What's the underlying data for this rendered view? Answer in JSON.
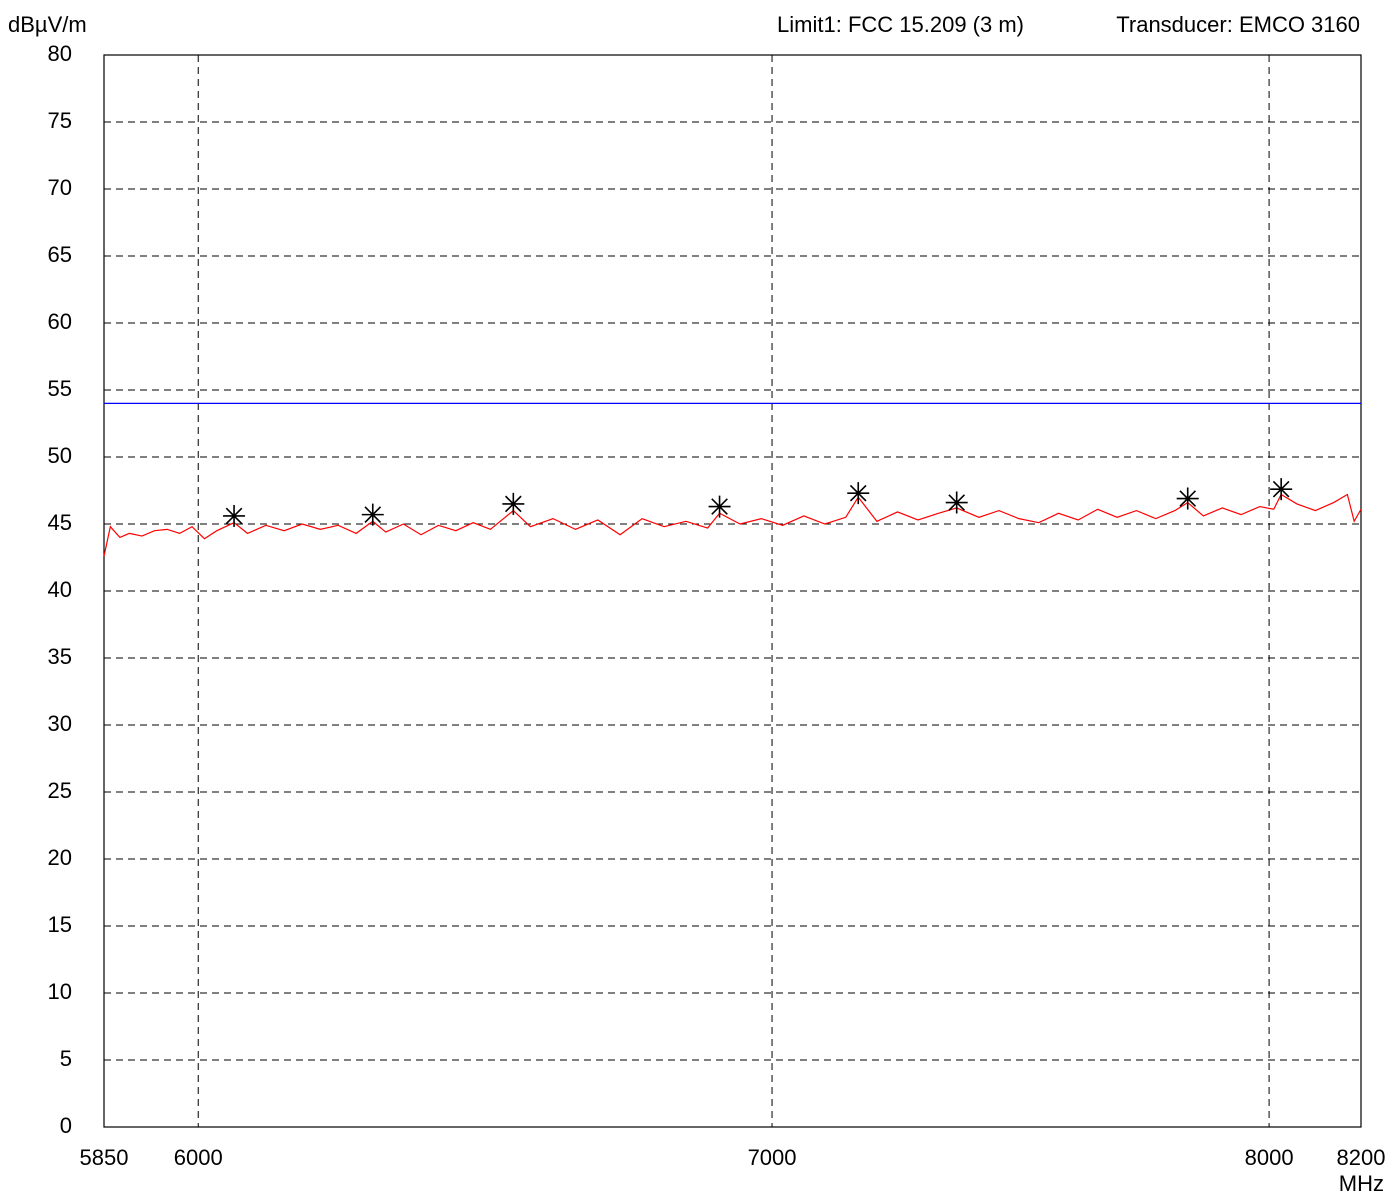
{
  "chart_data": {
    "type": "line",
    "y_label": "dBµV/m",
    "x_label": "MHz",
    "annotations": [
      "Limit1: FCC 15.209 (3 m)",
      "Transducer: EMCO 3160"
    ],
    "xlim": [
      5850,
      8200
    ],
    "xticks": [
      5850,
      6000,
      7000,
      8000,
      8200
    ],
    "xscale": "log",
    "ylim": [
      0,
      80
    ],
    "yticks": [
      0,
      5,
      10,
      15,
      20,
      25,
      30,
      35,
      40,
      45,
      50,
      55,
      60,
      65,
      70,
      75,
      80
    ],
    "grid": true,
    "series": [
      {
        "color": "#ff0000",
        "style": "line",
        "x": [
          5850,
          5860,
          5875,
          5890,
          5910,
          5930,
          5950,
          5970,
          5990,
          6010,
          6030,
          6058,
          6080,
          6110,
          6140,
          6170,
          6200,
          6230,
          6260,
          6288,
          6310,
          6340,
          6370,
          6400,
          6430,
          6460,
          6490,
          6530,
          6560,
          6600,
          6640,
          6680,
          6720,
          6760,
          6800,
          6840,
          6880,
          6902,
          6940,
          6980,
          7020,
          7060,
          7100,
          7140,
          7164,
          7200,
          7240,
          7280,
          7320,
          7356,
          7400,
          7440,
          7480,
          7520,
          7560,
          7600,
          7640,
          7680,
          7720,
          7760,
          7800,
          7827,
          7860,
          7900,
          7940,
          7980,
          8010,
          8026,
          8060,
          8100,
          8140,
          8170,
          8185,
          8200
        ],
        "values": [
          42.6,
          44.8,
          44.0,
          44.3,
          44.1,
          44.5,
          44.6,
          44.3,
          44.8,
          43.9,
          44.5,
          45.1,
          44.3,
          44.9,
          44.5,
          45.0,
          44.6,
          44.9,
          44.3,
          45.2,
          44.4,
          45.0,
          44.2,
          44.9,
          44.5,
          45.1,
          44.6,
          46.0,
          44.8,
          45.4,
          44.6,
          45.3,
          44.2,
          45.4,
          44.8,
          45.2,
          44.7,
          45.8,
          45.0,
          45.4,
          44.9,
          45.6,
          45.0,
          45.5,
          47.0,
          45.2,
          45.9,
          45.3,
          45.8,
          46.2,
          45.5,
          46.0,
          45.4,
          45.1,
          45.8,
          45.3,
          46.1,
          45.5,
          46.0,
          45.4,
          46.0,
          46.6,
          45.6,
          46.2,
          45.7,
          46.3,
          46.1,
          47.2,
          46.5,
          46.0,
          46.6,
          47.2,
          45.2,
          46.1
        ]
      },
      {
        "color": "#0000ff",
        "style": "line",
        "x": [
          5850,
          8200
        ],
        "values": [
          54,
          54
        ]
      },
      {
        "color": "#000000",
        "style": "asterisk",
        "x": [
          6058,
          6288,
          6530,
          6902,
          7164,
          7356,
          7827,
          8026
        ],
        "values": [
          45.6,
          45.7,
          46.5,
          46.3,
          47.3,
          46.6,
          46.9,
          47.6
        ]
      }
    ]
  }
}
